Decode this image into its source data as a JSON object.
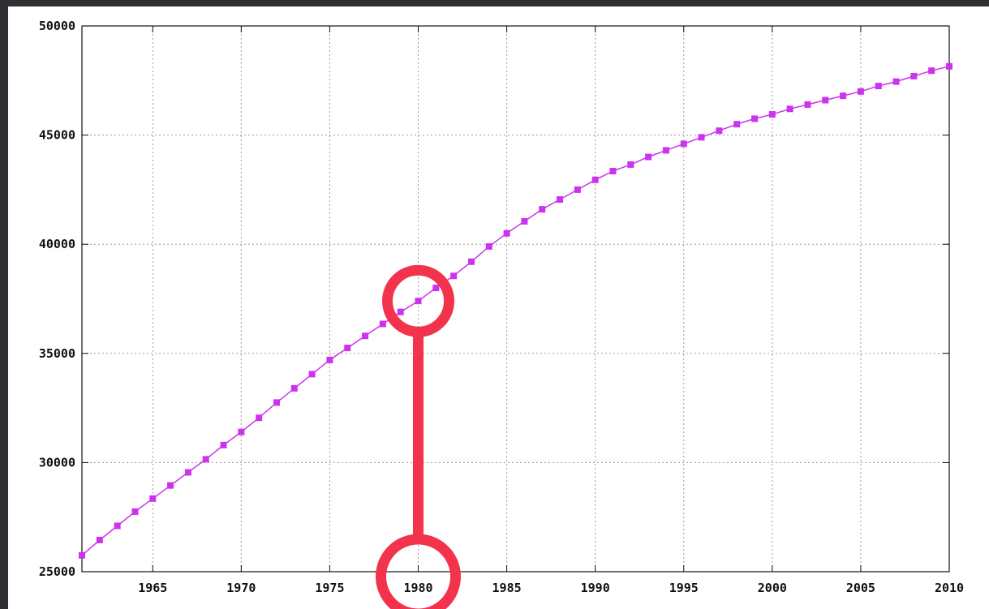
{
  "chart_data": {
    "type": "line",
    "title": "",
    "xlabel": "",
    "ylabel": "",
    "xlim": [
      1961,
      2010
    ],
    "ylim": [
      25000,
      50000
    ],
    "grid": true,
    "x_ticks": [
      "1965",
      "1970",
      "1975",
      "1980",
      "1985",
      "1990",
      "1995",
      "2000",
      "2005",
      "2010"
    ],
    "y_ticks": [
      "25000",
      "30000",
      "35000",
      "40000",
      "45000",
      "50000"
    ],
    "series_color": "#cc33ee",
    "annotation_color": "#f2334b",
    "series": [
      {
        "x": [
          1961,
          1962,
          1963,
          1964,
          1965,
          1966,
          1967,
          1968,
          1969,
          1970,
          1971,
          1972,
          1973,
          1974,
          1975,
          1976,
          1977,
          1978,
          1979,
          1980,
          1981,
          1982,
          1983,
          1984,
          1985,
          1986,
          1987,
          1988,
          1989,
          1990,
          1991,
          1992,
          1993,
          1994,
          1995,
          1996,
          1997,
          1998,
          1999,
          2000,
          2001,
          2002,
          2003,
          2004,
          2005,
          2006,
          2007,
          2008,
          2009,
          2010
        ],
        "y": [
          25750,
          26450,
          27100,
          27750,
          28350,
          28950,
          29550,
          30150,
          30800,
          31400,
          32050,
          32750,
          33400,
          34050,
          34700,
          35250,
          35800,
          36350,
          36900,
          37400,
          38000,
          38550,
          39200,
          39900,
          40500,
          41050,
          41600,
          42050,
          42500,
          42950,
          43350,
          43650,
          44000,
          44300,
          44600,
          44900,
          45200,
          45500,
          45750,
          45950,
          46200,
          46400,
          46600,
          46800,
          47000,
          47250,
          47450,
          47700,
          47950,
          48150
        ]
      }
    ],
    "annotation": {
      "x": 1980,
      "y": 37400
    }
  }
}
